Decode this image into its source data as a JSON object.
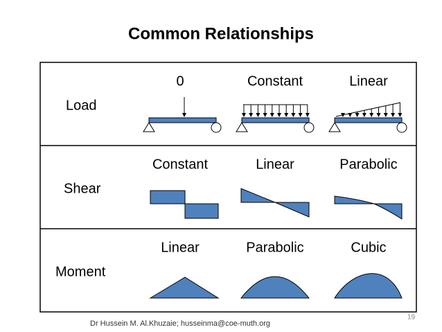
{
  "title": "Common Relationships",
  "rows": [
    {
      "label": "Load",
      "cells": [
        "0",
        "Constant",
        "Linear"
      ]
    },
    {
      "label": "Shear",
      "cells": [
        "Constant",
        "Linear",
        "Parabolic"
      ]
    },
    {
      "label": "Moment",
      "cells": [
        "Linear",
        "Parabolic",
        "Cubic"
      ]
    }
  ],
  "footer": "Dr Hussein M. Al.Khuzaie; husseinma@coe-muth.org",
  "page_number": "19"
}
